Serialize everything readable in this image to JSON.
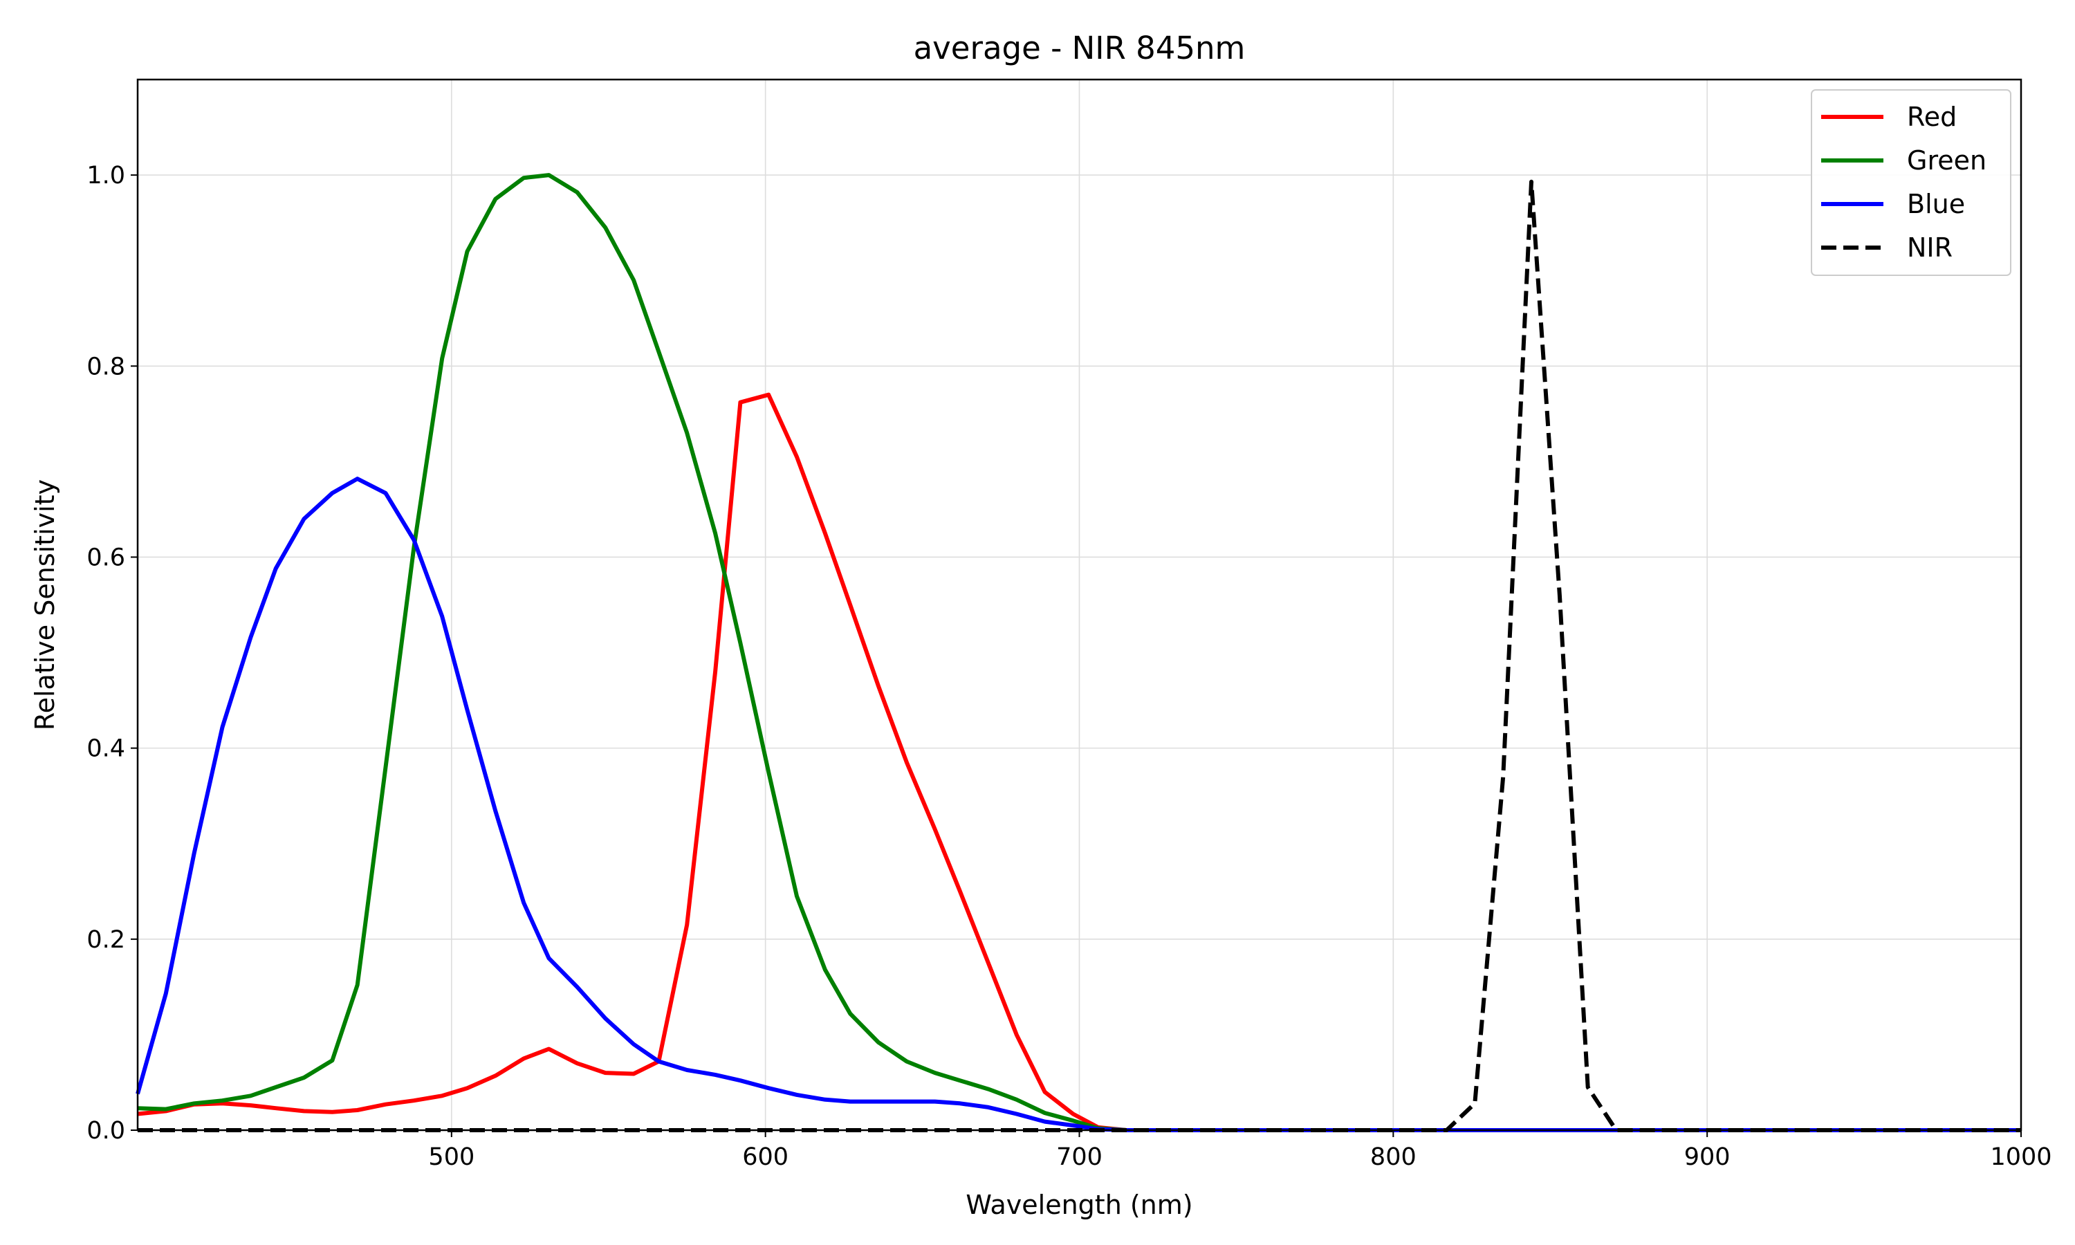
{
  "chart_data": {
    "type": "line",
    "title": "average - NIR 845nm",
    "xlabel": "Wavelength (nm)",
    "ylabel": "Relative Sensitivity",
    "xlim": [
      400,
      1000
    ],
    "ylim": [
      0,
      1.1
    ],
    "xticks": [
      500,
      600,
      700,
      800,
      900,
      1000
    ],
    "yticks": [
      0.0,
      0.2,
      0.4,
      0.6,
      0.8,
      1.0
    ],
    "grid": true,
    "legend_position": "top-right",
    "series": [
      {
        "name": "Red",
        "color": "#ff0000",
        "dash": "solid",
        "points": [
          [
            400,
            0.017
          ],
          [
            409,
            0.02
          ],
          [
            418,
            0.027
          ],
          [
            427,
            0.028
          ],
          [
            436,
            0.026
          ],
          [
            444,
            0.023
          ],
          [
            453,
            0.02
          ],
          [
            462,
            0.019
          ],
          [
            470,
            0.021
          ],
          [
            479,
            0.027
          ],
          [
            488,
            0.031
          ],
          [
            497,
            0.036
          ],
          [
            505,
            0.044
          ],
          [
            514,
            0.057
          ],
          [
            523,
            0.075
          ],
          [
            531,
            0.085
          ],
          [
            540,
            0.07
          ],
          [
            549,
            0.06
          ],
          [
            558,
            0.059
          ],
          [
            566,
            0.072
          ],
          [
            575,
            0.215
          ],
          [
            584,
            0.48
          ],
          [
            592,
            0.762
          ],
          [
            601,
            0.77
          ],
          [
            610,
            0.705
          ],
          [
            619,
            0.625
          ],
          [
            627,
            0.55
          ],
          [
            636,
            0.465
          ],
          [
            645,
            0.385
          ],
          [
            654,
            0.315
          ],
          [
            662,
            0.25
          ],
          [
            671,
            0.175
          ],
          [
            680,
            0.1
          ],
          [
            689,
            0.04
          ],
          [
            698,
            0.017
          ],
          [
            706,
            0.003
          ],
          [
            715,
            0.0
          ],
          [
            750,
            0.0
          ],
          [
            800,
            0.0
          ],
          [
            850,
            0.0
          ],
          [
            900,
            0.0
          ],
          [
            1000,
            0.0
          ]
        ]
      },
      {
        "name": "Green",
        "color": "#008000",
        "dash": "solid",
        "points": [
          [
            400,
            0.023
          ],
          [
            409,
            0.022
          ],
          [
            418,
            0.028
          ],
          [
            427,
            0.031
          ],
          [
            436,
            0.036
          ],
          [
            444,
            0.045
          ],
          [
            453,
            0.055
          ],
          [
            462,
            0.073
          ],
          [
            470,
            0.152
          ],
          [
            479,
            0.38
          ],
          [
            488,
            0.61
          ],
          [
            497,
            0.808
          ],
          [
            505,
            0.92
          ],
          [
            514,
            0.975
          ],
          [
            523,
            0.997
          ],
          [
            531,
            1.0
          ],
          [
            540,
            0.982
          ],
          [
            549,
            0.945
          ],
          [
            558,
            0.89
          ],
          [
            566,
            0.815
          ],
          [
            575,
            0.73
          ],
          [
            584,
            0.625
          ],
          [
            592,
            0.51
          ],
          [
            601,
            0.375
          ],
          [
            610,
            0.245
          ],
          [
            619,
            0.168
          ],
          [
            627,
            0.122
          ],
          [
            636,
            0.092
          ],
          [
            645,
            0.072
          ],
          [
            654,
            0.06
          ],
          [
            662,
            0.052
          ],
          [
            671,
            0.043
          ],
          [
            680,
            0.032
          ],
          [
            689,
            0.018
          ],
          [
            698,
            0.01
          ],
          [
            706,
            0.002
          ],
          [
            715,
            0.0
          ],
          [
            750,
            0.0
          ],
          [
            800,
            0.0
          ],
          [
            850,
            0.0
          ],
          [
            900,
            0.0
          ],
          [
            1000,
            0.0
          ]
        ]
      },
      {
        "name": "Blue",
        "color": "#0000ff",
        "dash": "solid",
        "points": [
          [
            400,
            0.038
          ],
          [
            409,
            0.143
          ],
          [
            418,
            0.29
          ],
          [
            427,
            0.422
          ],
          [
            436,
            0.516
          ],
          [
            444,
            0.588
          ],
          [
            453,
            0.64
          ],
          [
            462,
            0.667
          ],
          [
            470,
            0.682
          ],
          [
            479,
            0.667
          ],
          [
            488,
            0.618
          ],
          [
            497,
            0.538
          ],
          [
            505,
            0.44
          ],
          [
            514,
            0.334
          ],
          [
            523,
            0.238
          ],
          [
            531,
            0.18
          ],
          [
            540,
            0.15
          ],
          [
            549,
            0.117
          ],
          [
            558,
            0.09
          ],
          [
            566,
            0.072
          ],
          [
            575,
            0.063
          ],
          [
            584,
            0.058
          ],
          [
            592,
            0.052
          ],
          [
            601,
            0.044
          ],
          [
            610,
            0.037
          ],
          [
            619,
            0.032
          ],
          [
            627,
            0.03
          ],
          [
            636,
            0.03
          ],
          [
            645,
            0.03
          ],
          [
            654,
            0.03
          ],
          [
            662,
            0.028
          ],
          [
            671,
            0.024
          ],
          [
            680,
            0.017
          ],
          [
            689,
            0.009
          ],
          [
            698,
            0.005
          ],
          [
            706,
            0.001
          ],
          [
            715,
            0.0
          ],
          [
            750,
            0.0
          ],
          [
            800,
            0.0
          ],
          [
            850,
            0.0
          ],
          [
            900,
            0.0
          ],
          [
            1000,
            0.0
          ]
        ]
      },
      {
        "name": "NIR",
        "color": "#000000",
        "dash": "dashed",
        "points": [
          [
            400,
            0.0
          ],
          [
            500,
            0.0
          ],
          [
            600,
            0.0
          ],
          [
            700,
            0.0
          ],
          [
            800,
            0.0
          ],
          [
            817,
            0.0
          ],
          [
            826,
            0.028
          ],
          [
            835,
            0.37
          ],
          [
            844,
            0.993
          ],
          [
            853,
            0.56
          ],
          [
            862,
            0.045
          ],
          [
            871,
            0.0
          ],
          [
            880,
            0.0
          ],
          [
            900,
            0.0
          ],
          [
            1000,
            0.0
          ]
        ]
      }
    ]
  }
}
